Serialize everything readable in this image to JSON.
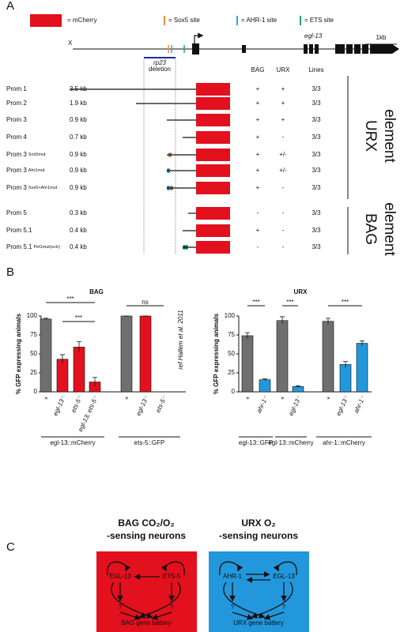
{
  "panel_labels": [
    "A",
    "B",
    "C"
  ],
  "legend": [
    {
      "label": "= mCherry",
      "color": "#e3101e"
    },
    {
      "label": "= Sox5 site",
      "color": "#f28a3c"
    },
    {
      "label": "= AHR-1 site",
      "color": "#2fa6e0"
    },
    {
      "label": "= ETS site",
      "color": "#22a37a"
    }
  ],
  "gene": {
    "chromosome": "X",
    "name": "egl-13",
    "scale": "1kb",
    "deletion": [
      "rp23",
      "deletion"
    ]
  },
  "columns": [
    "BAG",
    "URX",
    "Lines"
  ],
  "constructs": [
    {
      "name": "Prom 1",
      "length": "3.5 kb",
      "bag": "+",
      "urx": "+",
      "lines": "3/3"
    },
    {
      "name": "Prom 2",
      "length": "1.9 kb",
      "bag": "+",
      "urx": "+",
      "lines": "3/3"
    },
    {
      "name": "Prom 3",
      "length": "0.9 kb",
      "bag": "+",
      "urx": "+",
      "lines": "3/3"
    },
    {
      "name": "Prom 4",
      "length": "0.7 kb",
      "bag": "+",
      "urx": "-",
      "lines": "3/3"
    },
    {
      "name": "Prom 3",
      "mutation": "Sox5mut",
      "length": "0.9 kb",
      "bag": "+",
      "urx": "+/-",
      "lines": "3/3"
    },
    {
      "name": "Prom 3",
      "mutation": "Ahr1mut",
      "length": "0.9 kb",
      "bag": "+",
      "urx": "+/-",
      "lines": "3/3"
    },
    {
      "name": "Prom 3",
      "mutation": "Sox5+Ahr1mut",
      "length": "0.9 kb",
      "bag": "+",
      "urx": "-",
      "lines": "3/3"
    },
    {
      "name": "Prom 5",
      "length": "0.3 kb",
      "bag": "-",
      "urx": "-",
      "lines": "3/3"
    },
    {
      "name": "Prom 5.1",
      "length": "0.4 kb",
      "bag": "+",
      "urx": "-",
      "lines": "3/3"
    },
    {
      "name": "Prom 5.1",
      "mutation": "Pet1mut(a+b)",
      "length": "0.4 kb",
      "bag": "-",
      "urx": "-",
      "lines": "3/3"
    }
  ],
  "elements": [
    {
      "lines": [
        "URX",
        "element"
      ]
    },
    {
      "lines": [
        "BAG",
        "element"
      ]
    }
  ],
  "chart_data": [
    {
      "type": "bar",
      "title": "BAG",
      "ylabel": "% GFP expressing animals",
      "ylim": [
        0,
        100
      ],
      "yticks": [
        0,
        25,
        50,
        75,
        100
      ],
      "note": "ref Hallem et al. 2011",
      "significance": [
        "***",
        "***",
        "ns"
      ],
      "groups": [
        {
          "label": "egl-13::mCherry",
          "categories": [
            "+",
            "egl-13⁻",
            "ets-5⁻",
            "egl-13; ets-5⁻"
          ],
          "values": [
            96,
            43,
            59,
            13
          ],
          "errors": [
            1,
            6,
            7,
            6
          ],
          "colors": [
            "#6f6f6f",
            "#e3101e",
            "#e3101e",
            "#e3101e"
          ]
        },
        {
          "label": "ets-5::GFP",
          "categories": [
            "+",
            "egl-13⁻",
            "ets-5⁻"
          ],
          "values": [
            100,
            100,
            0
          ],
          "errors": [
            0,
            0,
            0
          ],
          "colors": [
            "#6f6f6f",
            "#e3101e",
            "#e3101e"
          ]
        }
      ]
    },
    {
      "type": "bar",
      "title": "URX",
      "ylabel": "% GFP expressing animals",
      "ylim": [
        0,
        100
      ],
      "yticks": [
        0,
        25,
        50,
        75,
        100
      ],
      "significance": [
        "***",
        "***",
        "***"
      ],
      "groups": [
        {
          "label": "egl-13::GFP",
          "categories": [
            "+",
            "ahr-1⁻"
          ],
          "values": [
            74,
            16
          ],
          "errors": [
            4,
            1
          ],
          "colors": [
            "#6f6f6f",
            "#2297dc"
          ]
        },
        {
          "label": "egl-13::mCherry",
          "categories": [
            "+",
            "egl-13⁻"
          ],
          "values": [
            94,
            7
          ],
          "errors": [
            5,
            1
          ],
          "colors": [
            "#6f6f6f",
            "#2297dc"
          ]
        },
        {
          "label": "ahr-1::mCherry",
          "categories": [
            "+",
            "egl-13⁻",
            "ahr-1⁻"
          ],
          "values": [
            93,
            36,
            64
          ],
          "errors": [
            4,
            4,
            3
          ],
          "colors": [
            "#6f6f6f",
            "#2297dc",
            "#2297dc"
          ]
        }
      ]
    }
  ],
  "panel_c": [
    {
      "title": [
        "BAG CO₂/O₂",
        "-sensing neurons"
      ],
      "color": "#e3101e",
      "nodes": [
        "EGL-13",
        "ETS-5",
        "?",
        "?",
        "BAG gene battery"
      ]
    },
    {
      "title": [
        "URX O₂",
        "-sensing neurons"
      ],
      "color": "#2297dc",
      "nodes": [
        "AHR-1",
        "EGL-13",
        "?",
        "?",
        "URX gene battery"
      ]
    }
  ]
}
